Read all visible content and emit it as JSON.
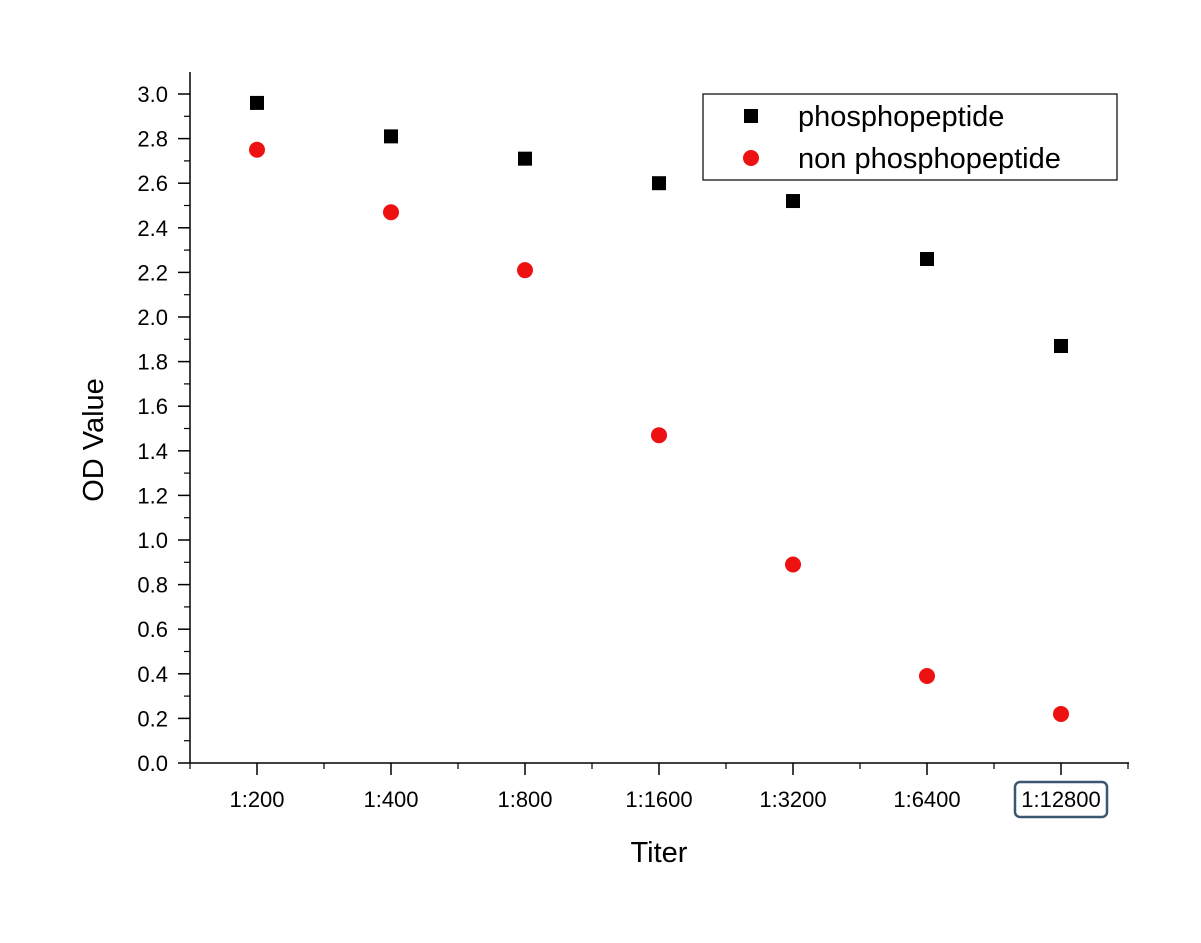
{
  "chart_data": {
    "type": "scatter",
    "xlabel": "Titer",
    "ylabel": "OD Value",
    "categories": [
      "1:200",
      "1:400",
      "1:800",
      "1:1600",
      "1:3200",
      "1:6400",
      "1:12800"
    ],
    "ylim": [
      0.0,
      3.0
    ],
    "y_ticks": [
      "0.0",
      "0.2",
      "0.4",
      "0.6",
      "0.8",
      "1.0",
      "1.2",
      "1.4",
      "1.6",
      "1.8",
      "2.0",
      "2.2",
      "2.4",
      "2.6",
      "2.8",
      "3.0"
    ],
    "grid": false,
    "legend_position": "top-right",
    "highlighted_category": "1:12800",
    "highlight_color": "#3b5671",
    "series": [
      {
        "name": "phosphopeptide",
        "marker": "square",
        "color": "#000000",
        "values": [
          2.96,
          2.81,
          2.71,
          2.6,
          2.52,
          2.26,
          1.87
        ]
      },
      {
        "name": "non phosphopeptide",
        "marker": "circle",
        "color": "#ee1111",
        "values": [
          2.75,
          2.47,
          2.21,
          1.47,
          0.89,
          0.39,
          0.22
        ]
      }
    ]
  }
}
